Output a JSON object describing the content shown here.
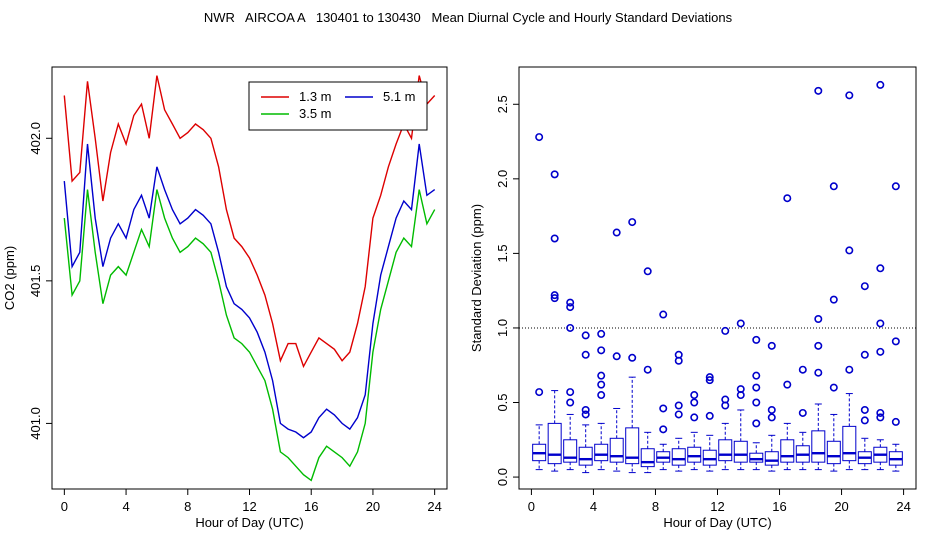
{
  "title": "NWR   AIRCOA A   130401 to 130430   Mean Diurnal Cycle and Hourly Standard Deviations",
  "colors": {
    "red": "#dd0000",
    "green": "#00bb00",
    "blue": "#0000cc",
    "axis": "#000000"
  },
  "chart_data": [
    {
      "type": "line",
      "title": "",
      "xlabel": "Hour of Day (UTC)",
      "ylabel": "CO2 (ppm)",
      "xlim": [
        -0.8,
        24.8
      ],
      "ylim": [
        400.77,
        402.25
      ],
      "xticks": [
        0,
        4,
        8,
        12,
        16,
        20,
        24
      ],
      "xtick_labels": [
        "0",
        "4",
        "8",
        "12",
        "16",
        "20",
        "24"
      ],
      "yticks": [
        401.0,
        401.5,
        402.0
      ],
      "ytick_labels": [
        "401.0",
        "401.5",
        "402.0"
      ],
      "legend": {
        "position": "top-right",
        "entries": [
          "1.3 m",
          "3.5 m",
          "5.1 m"
        ]
      },
      "series": [
        {
          "name": "1.3 m",
          "color": "#dd0000",
          "x": [
            0,
            0.5,
            1,
            1.5,
            2,
            2.5,
            3,
            3.5,
            4,
            4.5,
            5,
            5.5,
            6,
            6.5,
            7,
            7.5,
            8,
            8.5,
            9,
            9.5,
            10,
            10.5,
            11,
            11.5,
            12,
            12.5,
            13,
            13.5,
            14,
            14.5,
            15,
            15.5,
            16,
            16.5,
            17,
            17.5,
            18,
            18.5,
            19,
            19.5,
            20,
            20.5,
            21,
            21.5,
            22,
            22.5,
            23,
            23.5,
            24
          ],
          "values": [
            402.15,
            401.85,
            401.88,
            402.2,
            402.0,
            401.78,
            401.95,
            402.05,
            401.98,
            402.08,
            402.12,
            402.0,
            402.22,
            402.1,
            402.05,
            402.0,
            402.02,
            402.05,
            402.03,
            402.0,
            401.9,
            401.75,
            401.65,
            401.62,
            401.58,
            401.52,
            401.45,
            401.35,
            401.22,
            401.28,
            401.28,
            401.2,
            401.25,
            401.3,
            401.28,
            401.26,
            401.22,
            401.25,
            401.35,
            401.48,
            401.72,
            401.8,
            401.9,
            401.98,
            402.05,
            402.0,
            402.22,
            402.12,
            402.15
          ]
        },
        {
          "name": "3.5 m",
          "color": "#00bb00",
          "x": [
            0,
            0.5,
            1,
            1.5,
            2,
            2.5,
            3,
            3.5,
            4,
            4.5,
            5,
            5.5,
            6,
            6.5,
            7,
            7.5,
            8,
            8.5,
            9,
            9.5,
            10,
            10.5,
            11,
            11.5,
            12,
            12.5,
            13,
            13.5,
            14,
            14.5,
            15,
            15.5,
            16,
            16.5,
            17,
            17.5,
            18,
            18.5,
            19,
            19.5,
            20,
            20.5,
            21,
            21.5,
            22,
            22.5,
            23,
            23.5,
            24
          ],
          "values": [
            401.72,
            401.45,
            401.5,
            401.82,
            401.6,
            401.42,
            401.52,
            401.55,
            401.52,
            401.6,
            401.68,
            401.62,
            401.82,
            401.72,
            401.65,
            401.6,
            401.62,
            401.65,
            401.63,
            401.6,
            401.5,
            401.38,
            401.3,
            401.28,
            401.25,
            401.2,
            401.15,
            401.05,
            400.9,
            400.88,
            400.85,
            400.82,
            400.8,
            400.88,
            400.92,
            400.9,
            400.88,
            400.85,
            400.9,
            401.0,
            401.25,
            401.4,
            401.5,
            401.6,
            401.65,
            401.62,
            401.82,
            401.7,
            401.75
          ]
        },
        {
          "name": "5.1 m",
          "color": "#0000cc",
          "x": [
            0,
            0.5,
            1,
            1.5,
            2,
            2.5,
            3,
            3.5,
            4,
            4.5,
            5,
            5.5,
            6,
            6.5,
            7,
            7.5,
            8,
            8.5,
            9,
            9.5,
            10,
            10.5,
            11,
            11.5,
            12,
            12.5,
            13,
            13.5,
            14,
            14.5,
            15,
            15.5,
            16,
            16.5,
            17,
            17.5,
            18,
            18.5,
            19,
            19.5,
            20,
            20.5,
            21,
            21.5,
            22,
            22.5,
            23,
            23.5,
            24
          ],
          "values": [
            401.85,
            401.55,
            401.6,
            401.98,
            401.72,
            401.55,
            401.65,
            401.7,
            401.65,
            401.75,
            401.8,
            401.72,
            401.9,
            401.82,
            401.75,
            401.7,
            401.72,
            401.75,
            401.73,
            401.7,
            401.6,
            401.48,
            401.42,
            401.4,
            401.37,
            401.32,
            401.25,
            401.15,
            401.0,
            400.98,
            400.97,
            400.95,
            400.97,
            401.02,
            401.05,
            401.03,
            401.0,
            400.98,
            401.02,
            401.1,
            401.35,
            401.52,
            401.62,
            401.72,
            401.78,
            401.75,
            401.98,
            401.8,
            401.82
          ]
        }
      ]
    },
    {
      "type": "box",
      "title": "",
      "xlabel": "Hour of Day (UTC)",
      "ylabel": "Standard Deviation (ppm)",
      "xlim": [
        -0.8,
        24.8
      ],
      "ylim": [
        -0.08,
        2.75
      ],
      "xticks": [
        0,
        4,
        8,
        12,
        16,
        20,
        24
      ],
      "xtick_labels": [
        "0",
        "4",
        "8",
        "12",
        "16",
        "20",
        "24"
      ],
      "yticks": [
        0.0,
        0.5,
        1.0,
        1.5,
        2.0,
        2.5
      ],
      "ytick_labels": [
        "0.0",
        "0.5",
        "1.0",
        "1.5",
        "2.0",
        "2.5"
      ],
      "reference_line": 1.0,
      "boxes": [
        {
          "hour": 0.5,
          "min": 0.05,
          "q1": 0.11,
          "median": 0.16,
          "q3": 0.22,
          "max": 0.35,
          "outliers": [
            0.57,
            2.28
          ]
        },
        {
          "hour": 1.5,
          "min": 0.04,
          "q1": 0.09,
          "median": 0.15,
          "q3": 0.36,
          "max": 0.58,
          "outliers": [
            1.2,
            1.22,
            1.6,
            2.03
          ]
        },
        {
          "hour": 2.5,
          "min": 0.05,
          "q1": 0.1,
          "median": 0.13,
          "q3": 0.25,
          "max": 0.42,
          "outliers": [
            0.5,
            0.57,
            1.0,
            1.14,
            1.17
          ]
        },
        {
          "hour": 3.5,
          "min": 0.03,
          "q1": 0.08,
          "median": 0.12,
          "q3": 0.2,
          "max": 0.35,
          "outliers": [
            0.42,
            0.45,
            0.82,
            0.95
          ]
        },
        {
          "hour": 4.5,
          "min": 0.05,
          "q1": 0.11,
          "median": 0.15,
          "q3": 0.22,
          "max": 0.36,
          "outliers": [
            0.55,
            0.62,
            0.68,
            0.85,
            0.96
          ]
        },
        {
          "hour": 5.5,
          "min": 0.04,
          "q1": 0.1,
          "median": 0.14,
          "q3": 0.26,
          "max": 0.46,
          "outliers": [
            0.81,
            1.64
          ]
        },
        {
          "hour": 6.5,
          "min": 0.03,
          "q1": 0.09,
          "median": 0.13,
          "q3": 0.33,
          "max": 0.67,
          "outliers": [
            0.8,
            1.71
          ]
        },
        {
          "hour": 7.5,
          "min": 0.03,
          "q1": 0.07,
          "median": 0.1,
          "q3": 0.19,
          "max": 0.3,
          "outliers": [
            0.72,
            1.38
          ]
        },
        {
          "hour": 8.5,
          "min": 0.05,
          "q1": 0.1,
          "median": 0.13,
          "q3": 0.17,
          "max": 0.22,
          "outliers": [
            0.32,
            0.46,
            1.09
          ]
        },
        {
          "hour": 9.5,
          "min": 0.04,
          "q1": 0.08,
          "median": 0.12,
          "q3": 0.19,
          "max": 0.26,
          "outliers": [
            0.42,
            0.48,
            0.78,
            0.82
          ]
        },
        {
          "hour": 10.5,
          "min": 0.05,
          "q1": 0.1,
          "median": 0.14,
          "q3": 0.2,
          "max": 0.3,
          "outliers": [
            0.4,
            0.5,
            0.55
          ]
        },
        {
          "hour": 11.5,
          "min": 0.04,
          "q1": 0.08,
          "median": 0.12,
          "q3": 0.18,
          "max": 0.28,
          "outliers": [
            0.41,
            0.65,
            0.67
          ]
        },
        {
          "hour": 12.5,
          "min": 0.05,
          "q1": 0.11,
          "median": 0.15,
          "q3": 0.25,
          "max": 0.36,
          "outliers": [
            0.48,
            0.52,
            0.98
          ]
        },
        {
          "hour": 13.5,
          "min": 0.05,
          "q1": 0.1,
          "median": 0.15,
          "q3": 0.24,
          "max": 0.45,
          "outliers": [
            0.55,
            0.59,
            1.03
          ]
        },
        {
          "hour": 14.5,
          "min": 0.05,
          "q1": 0.1,
          "median": 0.12,
          "q3": 0.16,
          "max": 0.23,
          "outliers": [
            0.36,
            0.5,
            0.6,
            0.68,
            0.92
          ]
        },
        {
          "hour": 15.5,
          "min": 0.04,
          "q1": 0.08,
          "median": 0.11,
          "q3": 0.17,
          "max": 0.28,
          "outliers": [
            0.4,
            0.45,
            0.88
          ]
        },
        {
          "hour": 16.5,
          "min": 0.05,
          "q1": 0.1,
          "median": 0.14,
          "q3": 0.25,
          "max": 0.36,
          "outliers": [
            0.62,
            1.87
          ]
        },
        {
          "hour": 17.5,
          "min": 0.05,
          "q1": 0.1,
          "median": 0.15,
          "q3": 0.21,
          "max": 0.3,
          "outliers": [
            0.43,
            0.72
          ]
        },
        {
          "hour": 18.5,
          "min": 0.05,
          "q1": 0.1,
          "median": 0.16,
          "q3": 0.31,
          "max": 0.49,
          "outliers": [
            0.7,
            0.88,
            1.06,
            2.59
          ]
        },
        {
          "hour": 19.5,
          "min": 0.04,
          "q1": 0.09,
          "median": 0.14,
          "q3": 0.24,
          "max": 0.42,
          "outliers": [
            0.6,
            1.19,
            1.95
          ]
        },
        {
          "hour": 20.5,
          "min": 0.05,
          "q1": 0.11,
          "median": 0.16,
          "q3": 0.34,
          "max": 0.56,
          "outliers": [
            0.72,
            1.52,
            2.56
          ]
        },
        {
          "hour": 21.5,
          "min": 0.05,
          "q1": 0.09,
          "median": 0.13,
          "q3": 0.17,
          "max": 0.26,
          "outliers": [
            0.38,
            0.45,
            0.82,
            1.28
          ]
        },
        {
          "hour": 22.5,
          "min": 0.05,
          "q1": 0.1,
          "median": 0.15,
          "q3": 0.2,
          "max": 0.25,
          "outliers": [
            0.4,
            0.43,
            0.84,
            1.03,
            1.4,
            2.63
          ]
        },
        {
          "hour": 23.5,
          "min": 0.04,
          "q1": 0.08,
          "median": 0.12,
          "q3": 0.17,
          "max": 0.22,
          "outliers": [
            0.37,
            0.91,
            1.95
          ]
        }
      ]
    }
  ]
}
